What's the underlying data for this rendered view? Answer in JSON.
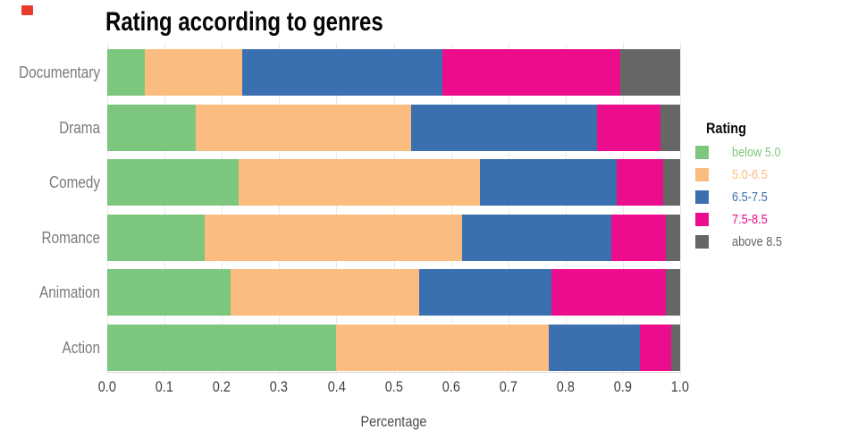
{
  "page": {
    "background": "#ffffff"
  },
  "decorations": {
    "red_marker_color": "#e93b2b"
  },
  "colors": {
    "gridline": "#f0e7e7",
    "axis_baseline": "#ddd8d8",
    "title_text": "#050505",
    "category_label": "#7a7a7a",
    "tick_label": "#3e3e3e",
    "axis_title": "#4d4d4d",
    "legend_title": "#0a0a0a"
  },
  "chart_data": {
    "type": "bar",
    "stacked": true,
    "orientation": "horizontal",
    "title": "Rating according to genres",
    "xlabel": "Percentage",
    "ylabel": "",
    "legend_title": "Rating",
    "legend_position": "right",
    "grid": true,
    "xlim": [
      0.0,
      1.0
    ],
    "x_ticks": [
      "0.0",
      "0.1",
      "0.2",
      "0.3",
      "0.4",
      "0.5",
      "0.6",
      "0.7",
      "0.8",
      "0.9",
      "1.0"
    ],
    "categories": [
      "Documentary",
      "Drama",
      "Comedy",
      "Romance",
      "Animation",
      "Action"
    ],
    "series": [
      {
        "name": "below 5.0",
        "color": "#7cc77d",
        "values": [
          0.065,
          0.155,
          0.23,
          0.17,
          0.215,
          0.4
        ]
      },
      {
        "name": "5.0-6.5",
        "color": "#fbbd7f",
        "values": [
          0.17,
          0.375,
          0.42,
          0.45,
          0.33,
          0.37
        ]
      },
      {
        "name": "6.5-7.5",
        "color": "#3a6fb0",
        "values": [
          0.35,
          0.325,
          0.24,
          0.26,
          0.23,
          0.16
        ]
      },
      {
        "name": "7.5-8.5",
        "color": "#eb0d8c",
        "values": [
          0.31,
          0.11,
          0.08,
          0.095,
          0.2,
          0.055
        ]
      },
      {
        "name": "above 8.5",
        "color": "#666666",
        "values": [
          0.105,
          0.035,
          0.03,
          0.025,
          0.025,
          0.015
        ]
      }
    ]
  }
}
